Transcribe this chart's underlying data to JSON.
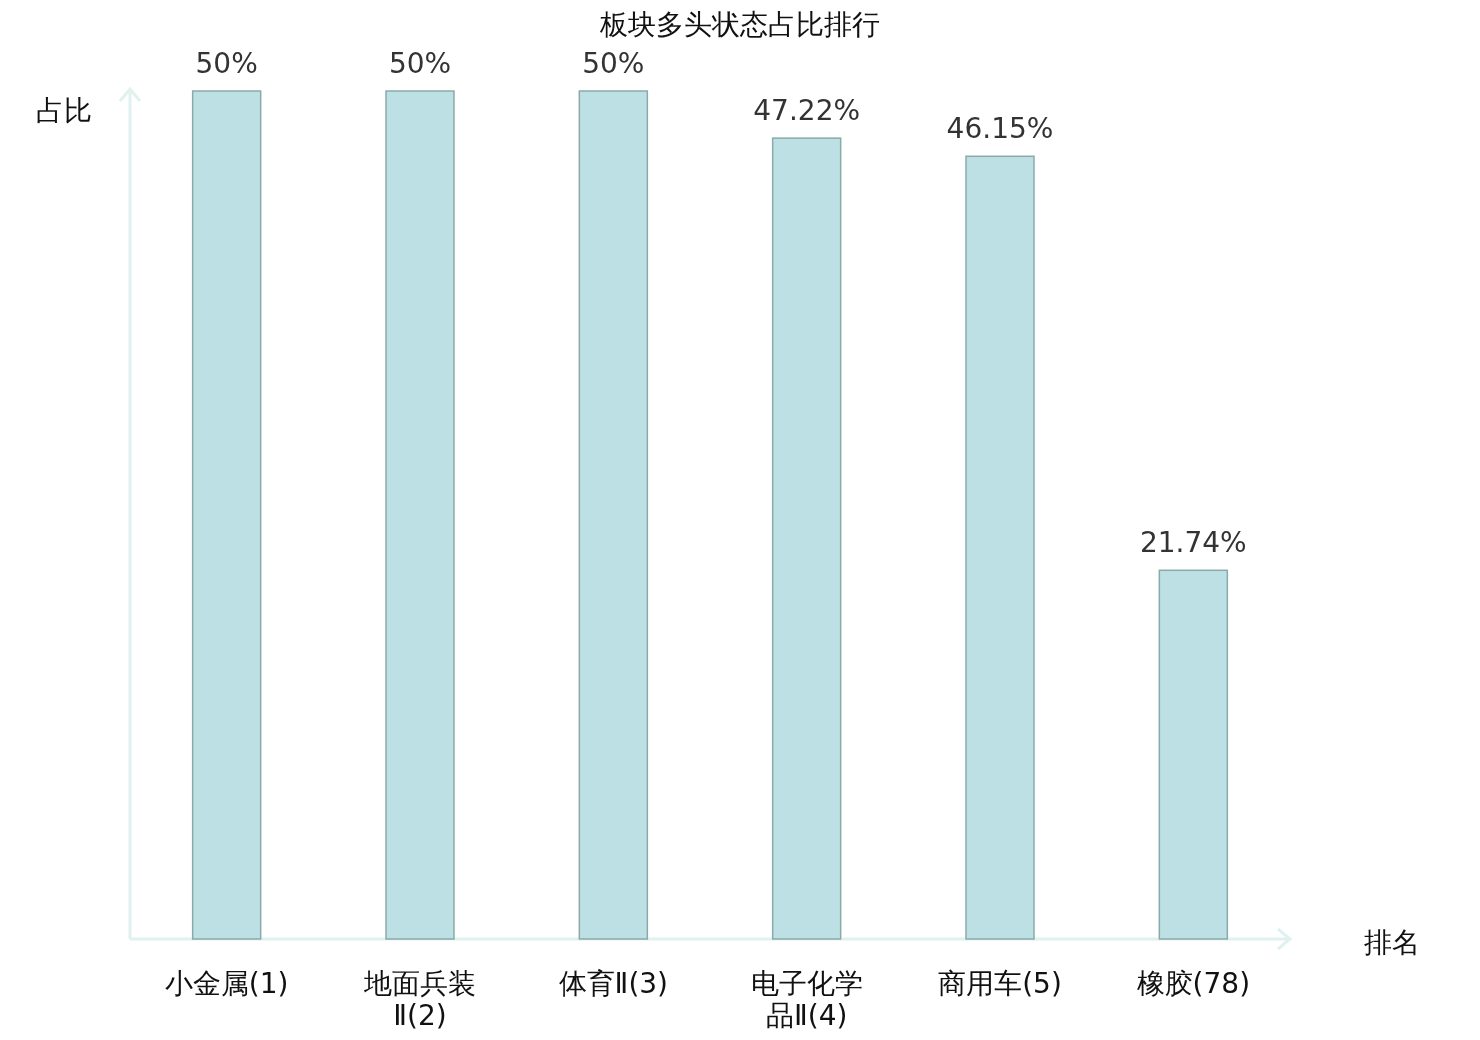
{
  "chart_data": {
    "type": "bar",
    "title": "板块多头状态占比排行",
    "xlabel": "排名",
    "ylabel": "占比",
    "categories": [
      "小金属(1)",
      "地面兵装Ⅱ(2)",
      "体育Ⅱ(3)",
      "电子化学品Ⅱ(4)",
      "商用车(5)",
      "橡胶(78)"
    ],
    "values": [
      50,
      50,
      50,
      47.22,
      46.15,
      21.74
    ],
    "value_labels": [
      "50%",
      "50%",
      "50%",
      "47.22%",
      "46.15%",
      "21.74%"
    ],
    "color": "#bce0e3"
  }
}
